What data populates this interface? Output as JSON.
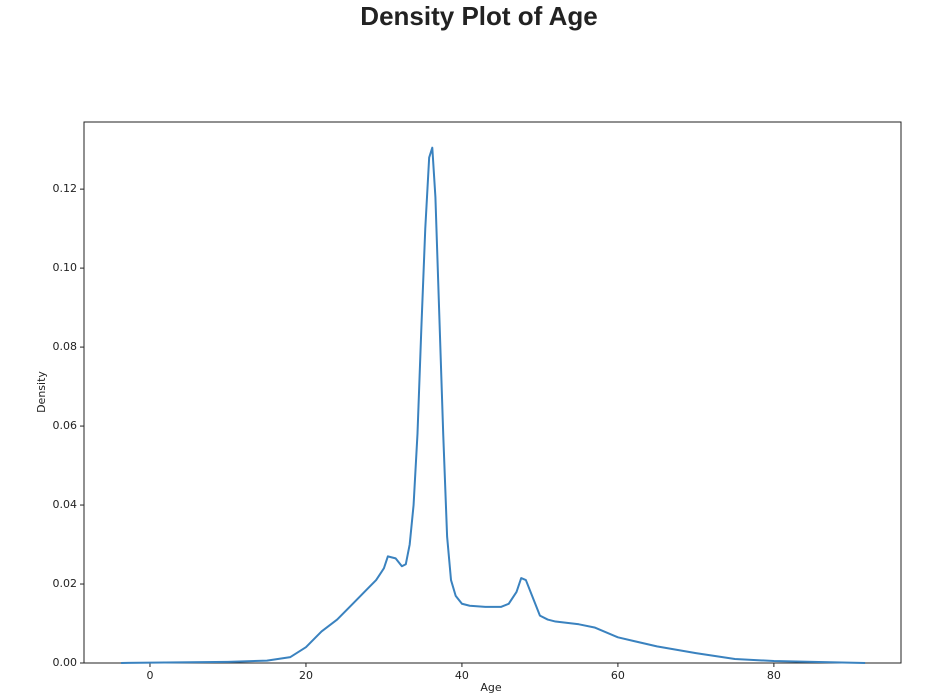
{
  "chart_data": {
    "type": "line",
    "title": "Density Plot of Age",
    "x_label": "Age",
    "y_label": "Density",
    "color": "#3a82bf",
    "x": [
      -3.7,
      10,
      15,
      18,
      20,
      22,
      24,
      26,
      28,
      29,
      30,
      30.5,
      31.5,
      32.3,
      32.8,
      33.3,
      33.8,
      34.3,
      34.8,
      35.3,
      35.8,
      36.2,
      36.6,
      37.1,
      37.6,
      38.1,
      38.6,
      39.2,
      40,
      41,
      43,
      45,
      46,
      47,
      47.6,
      48.2,
      49,
      50,
      51,
      52,
      55,
      57,
      60,
      65,
      70,
      75,
      80,
      85,
      91.7
    ],
    "values": [
      0,
      0.0003,
      0.0006,
      0.0015,
      0.004,
      0.008,
      0.011,
      0.015,
      0.019,
      0.021,
      0.024,
      0.027,
      0.0265,
      0.0245,
      0.025,
      0.03,
      0.04,
      0.058,
      0.085,
      0.11,
      0.128,
      0.1305,
      0.118,
      0.088,
      0.058,
      0.032,
      0.021,
      0.017,
      0.015,
      0.0145,
      0.0142,
      0.0142,
      0.015,
      0.018,
      0.0215,
      0.021,
      0.017,
      0.012,
      0.011,
      0.0105,
      0.0098,
      0.009,
      0.0065,
      0.0042,
      0.0025,
      0.001,
      0.0005,
      0.0003,
      0
    ],
    "xlim": [
      -8.46,
      96.3
    ],
    "ylim": [
      0,
      0.137
    ],
    "xticks": [
      0,
      20,
      40,
      60,
      80
    ],
    "yticks": [
      {
        "value": 0,
        "label": "0.00"
      },
      {
        "value": 0.02,
        "label": "0.02"
      },
      {
        "value": 0.04,
        "label": "0.04"
      },
      {
        "value": 0.06,
        "label": "0.06"
      },
      {
        "value": 0.08,
        "label": "0.08"
      },
      {
        "value": 0.1,
        "label": "0.10"
      },
      {
        "value": 0.12,
        "label": "0.12"
      }
    ]
  }
}
